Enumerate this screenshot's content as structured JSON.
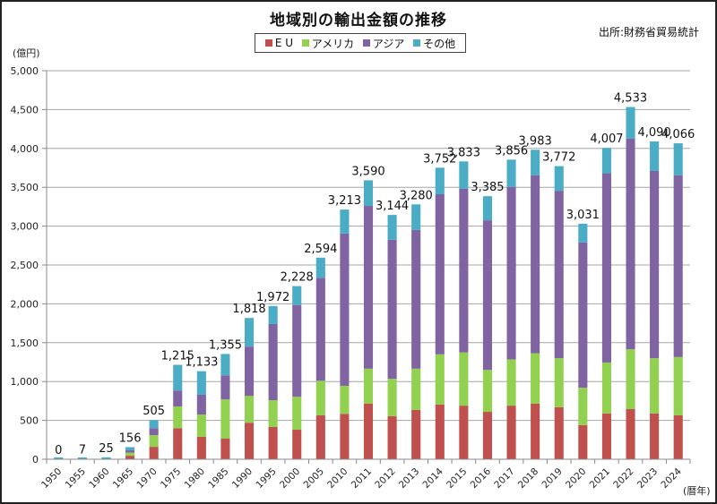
{
  "chart_data": {
    "type": "bar",
    "stacked": true,
    "title": "地域別の輸出金額の推移",
    "source": "出所:財務省貿易統計",
    "ylabel": "(億円)",
    "xlabel": "(暦年)",
    "ylim": [
      0,
      5000
    ],
    "yticks": [
      0,
      500,
      1000,
      1500,
      2000,
      2500,
      3000,
      3500,
      4000,
      4500,
      5000
    ],
    "ytick_labels": [
      "0",
      "500",
      "1,000",
      "1,500",
      "2,000",
      "2,500",
      "3,000",
      "3,500",
      "4,000",
      "4,500",
      "5,000"
    ],
    "grid": true,
    "legend_position": "top-center",
    "categories": [
      "1950",
      "1955",
      "1960",
      "1965",
      "1970",
      "1975",
      "1980",
      "1985",
      "1990",
      "1995",
      "2000",
      "2005",
      "2010",
      "2011",
      "2012",
      "2013",
      "2014",
      "2015",
      "2016",
      "2017",
      "2018",
      "2019",
      "2020",
      "2021",
      "2022",
      "2023",
      "2024"
    ],
    "series": [
      {
        "name": "E U",
        "color": "#c0504d",
        "values": [
          0,
          1,
          4,
          45,
          160,
          400,
          290,
          265,
          470,
          415,
          380,
          565,
          585,
          715,
          555,
          635,
          705,
          690,
          610,
          690,
          715,
          670,
          440,
          590,
          645,
          590,
          565
        ]
      },
      {
        "name": "アメリカ",
        "color": "#92d050",
        "values": [
          0,
          2,
          6,
          40,
          150,
          280,
          285,
          505,
          345,
          345,
          425,
          445,
          360,
          450,
          480,
          530,
          645,
          685,
          540,
          595,
          650,
          630,
          480,
          655,
          770,
          710,
          750
        ]
      },
      {
        "name": "アジア",
        "color": "#8064a2",
        "values": [
          0,
          2,
          7,
          30,
          90,
          205,
          255,
          310,
          635,
          980,
          1180,
          1325,
          1960,
          2095,
          1790,
          1785,
          2060,
          2105,
          1925,
          2220,
          2290,
          2155,
          1870,
          2435,
          2710,
          2410,
          2340
        ]
      },
      {
        "name": "その他",
        "color": "#4bacc6",
        "values": [
          0,
          2,
          8,
          41,
          105,
          330,
          303,
          275,
          368,
          232,
          243,
          259,
          308,
          330,
          319,
          330,
          342,
          353,
          310,
          351,
          328,
          317,
          241,
          327,
          408,
          380,
          411
        ]
      }
    ],
    "totals": [
      0,
      7,
      25,
      156,
      505,
      1215,
      1133,
      1355,
      1818,
      1972,
      2228,
      2594,
      3213,
      3590,
      3144,
      3280,
      3752,
      3833,
      3385,
      3856,
      3983,
      3772,
      3031,
      4007,
      4533,
      4090,
      4066
    ],
    "total_labels": [
      "0",
      "7",
      "25",
      "156",
      "505",
      "1,215",
      "1,133",
      "1,355",
      "1,818",
      "1,972",
      "2,228",
      "2,594",
      "3,213",
      "3,590",
      "3,144",
      "3,280",
      "3,752",
      "3,833",
      "3,385",
      "3,856",
      "3,983",
      "3,772",
      "3,031",
      "4,007",
      "4,533",
      "4,090",
      "4,066"
    ]
  }
}
